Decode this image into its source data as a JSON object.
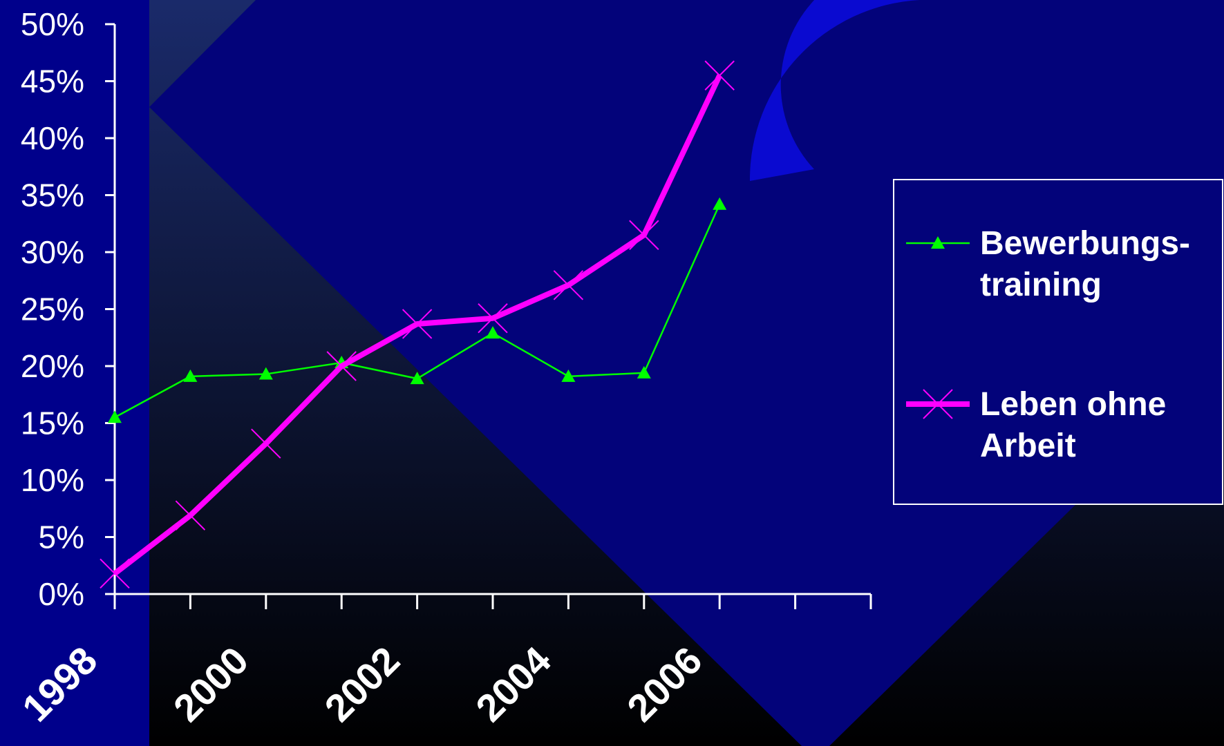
{
  "chart_data": {
    "type": "line",
    "x": [
      1998,
      1999,
      2000,
      2001,
      2002,
      2003,
      2004,
      2005,
      2006
    ],
    "xtick_labels": [
      "1998",
      "2000",
      "2002",
      "2004",
      "2006"
    ],
    "ytick_labels": [
      "0%",
      "5%",
      "10%",
      "15%",
      "20%",
      "25%",
      "30%",
      "35%",
      "40%",
      "45%",
      "50%"
    ],
    "ylim": [
      0,
      50
    ],
    "series": [
      {
        "name": "Bewerbungs-training",
        "legend_lines": [
          "Bewerbungs-",
          "training"
        ],
        "color": "#00ff00",
        "marker": "triangle",
        "values": [
          15.5,
          19.1,
          19.3,
          20.3,
          18.9,
          22.9,
          19.1,
          19.4,
          34.2
        ]
      },
      {
        "name": "Leben ohne Arbeit",
        "legend_lines": [
          "Leben ohne",
          "Arbeit"
        ],
        "color": "#ff00ff",
        "marker": "x",
        "values": [
          1.8,
          6.9,
          13.2,
          20.0,
          23.7,
          24.2,
          27.1,
          31.5,
          45.5
        ]
      }
    ],
    "legend_position": "right",
    "grid": false
  },
  "colors": {
    "background": "#00008b",
    "axis": "#ffffff"
  }
}
